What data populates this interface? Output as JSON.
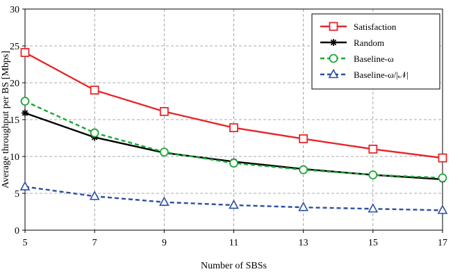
{
  "chart_data": {
    "type": "line",
    "xlabel": "Number of SBSs",
    "ylabel": "Average throughput per BS [Mbps]",
    "x": [
      5,
      7,
      9,
      11,
      13,
      15,
      17
    ],
    "xlim": [
      5,
      17
    ],
    "ylim": [
      0,
      30
    ],
    "yticks": [
      0,
      5,
      10,
      15,
      20,
      25,
      30
    ],
    "grid": true,
    "grid_style": "dashed",
    "legend_position": "top-right",
    "series": [
      {
        "name": "Satisfaction",
        "values": [
          24.1,
          19.0,
          16.1,
          13.9,
          12.4,
          11.0,
          9.8
        ],
        "color": "#e8262a",
        "line": "solid",
        "marker": "square"
      },
      {
        "name": "Random",
        "values": [
          15.9,
          12.6,
          10.5,
          9.3,
          8.3,
          7.5,
          6.9
        ],
        "color": "#000000",
        "line": "solid",
        "marker": "asterisk"
      },
      {
        "name": "Baseline-ω",
        "values": [
          17.5,
          13.2,
          10.6,
          9.1,
          8.2,
          7.5,
          7.1
        ],
        "color": "#1aa637",
        "line": "dashed",
        "marker": "circle"
      },
      {
        "name": "Baseline-ω/|𝒩|",
        "values": [
          5.9,
          4.6,
          3.8,
          3.4,
          3.1,
          2.9,
          2.7
        ],
        "color": "#2a4ea3",
        "line": "dashed",
        "marker": "triangle"
      }
    ]
  }
}
